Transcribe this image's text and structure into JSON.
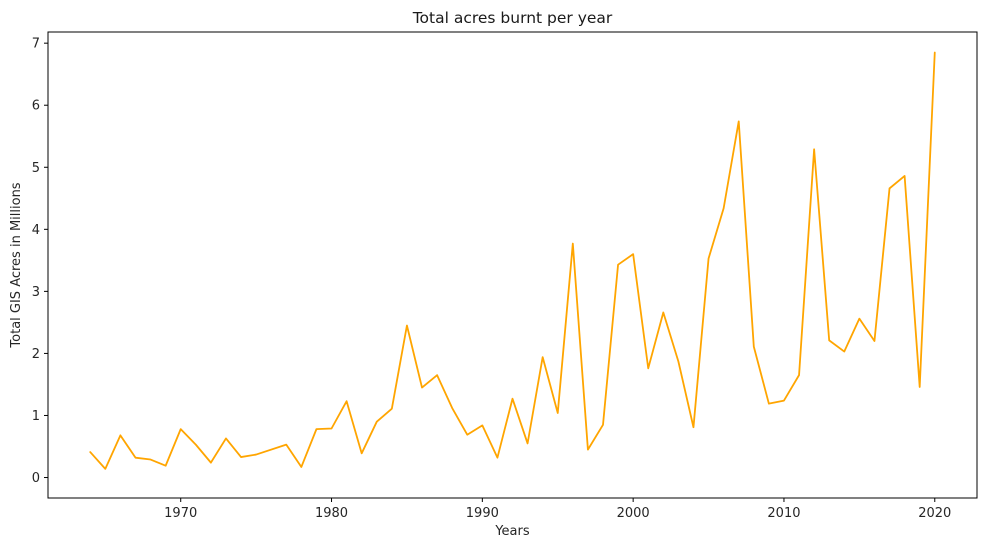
{
  "chart_data": {
    "type": "line",
    "title": "Total acres burnt per year",
    "xlabel": "Years",
    "ylabel": "Total GIS Acres in Millions",
    "xlim": [
      1961.2,
      2022.8
    ],
    "ylim": [
      -0.33,
      7.18
    ],
    "x_ticks": [
      1970,
      1980,
      1990,
      2000,
      2010,
      2020
    ],
    "y_ticks": [
      0,
      1,
      2,
      3,
      4,
      5,
      6,
      7
    ],
    "grid": false,
    "legend": "none",
    "line_color": "#FFA500",
    "series": [
      {
        "x": [
          1964,
          1965,
          1966,
          1967,
          1968,
          1969,
          1970,
          1971,
          1972,
          1973,
          1974,
          1975,
          1977,
          1978,
          1979,
          1980,
          1981,
          1982,
          1983,
          1984,
          1985,
          1986,
          1987,
          1988,
          1989,
          1990,
          1991,
          1992,
          1993,
          1994,
          1995,
          1996,
          1997,
          1998,
          1999,
          2000,
          2001,
          2002,
          2003,
          2004,
          2005,
          2006,
          2007,
          2008,
          2009,
          2010,
          2011,
          2012,
          2013,
          2014,
          2015,
          2016,
          2017,
          2018,
          2019,
          2020
        ],
        "values": [
          0.41,
          0.14,
          0.68,
          0.32,
          0.29,
          0.19,
          0.78,
          0.53,
          0.24,
          0.63,
          0.33,
          0.37,
          0.53,
          0.17,
          0.78,
          0.79,
          1.23,
          0.39,
          0.9,
          1.11,
          2.45,
          1.45,
          1.65,
          1.12,
          0.69,
          0.84,
          0.32,
          1.27,
          0.55,
          1.94,
          1.04,
          3.77,
          0.45,
          0.85,
          3.43,
          3.6,
          1.76,
          2.66,
          1.87,
          0.81,
          3.53,
          4.34,
          5.74,
          2.11,
          1.19,
          1.24,
          1.65,
          5.29,
          2.21,
          2.03,
          2.56,
          2.2,
          4.66,
          4.86,
          1.46,
          6.85
        ]
      }
    ]
  }
}
